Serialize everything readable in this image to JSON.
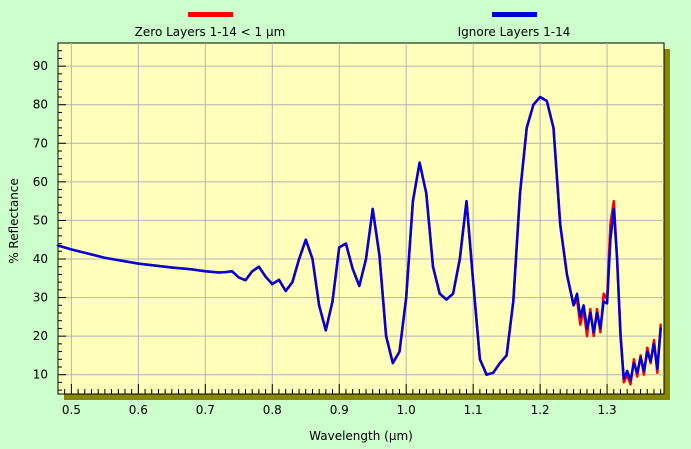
{
  "colors": {
    "page_background": "#ccffcc",
    "plot_background": "#ffffbb",
    "grid": "#b4b4b4",
    "axis": "#000000",
    "shadow": "#888800",
    "tick": "#000000"
  },
  "chart_data": {
    "type": "line",
    "xlabel": "Wavelength (µm)",
    "ylabel": "% Reflectance",
    "xlim": [
      0.48,
      1.385
    ],
    "ylim": [
      5,
      96
    ],
    "xticks": [
      0.5,
      0.6,
      0.7,
      0.8,
      0.9,
      1.0,
      1.1,
      1.2,
      1.3
    ],
    "xtick_labels": [
      "0.5",
      "0.6",
      "0.7",
      "0.8",
      "0.9",
      "1.0",
      "1.1",
      "1.2",
      "1.3"
    ],
    "yticks": [
      10,
      20,
      30,
      40,
      50,
      60,
      70,
      80,
      90
    ],
    "ytick_labels": [
      "10",
      "20",
      "30",
      "40",
      "50",
      "60",
      "70",
      "80",
      "90"
    ],
    "grid": true,
    "legend_position": "top",
    "series": [
      {
        "name": "Zero Layers 1-14 < 1 µm",
        "color": "#ff0000",
        "x": [
          0.48,
          0.5,
          0.55,
          0.6,
          0.65,
          0.68,
          0.7,
          0.72,
          0.73,
          0.74,
          0.75,
          0.76,
          0.77,
          0.78,
          0.79,
          0.8,
          0.81,
          0.82,
          0.83,
          0.84,
          0.85,
          0.86,
          0.87,
          0.88,
          0.89,
          0.9,
          0.91,
          0.92,
          0.93,
          0.94,
          0.95,
          0.96,
          0.97,
          0.98,
          0.99,
          1.0,
          1.01,
          1.02,
          1.03,
          1.04,
          1.05,
          1.06,
          1.07,
          1.08,
          1.09,
          1.1,
          1.11,
          1.12,
          1.13,
          1.14,
          1.15,
          1.16,
          1.17,
          1.18,
          1.19,
          1.2,
          1.21,
          1.22,
          1.23,
          1.24,
          1.25,
          1.255,
          1.26,
          1.265,
          1.27,
          1.275,
          1.28,
          1.285,
          1.29,
          1.295,
          1.3,
          1.305,
          1.31,
          1.315,
          1.32,
          1.325,
          1.33,
          1.335,
          1.34,
          1.345,
          1.35,
          1.355,
          1.36,
          1.365,
          1.37,
          1.375,
          1.38
        ],
        "y": [
          43.5,
          42.5,
          40.3,
          38.8,
          37.8,
          37.3,
          36.8,
          36.5,
          36.6,
          36.8,
          35.2,
          34.5,
          36.8,
          38.0,
          35.4,
          33.5,
          34.6,
          31.7,
          34.0,
          40.0,
          45.0,
          40.0,
          28.0,
          21.5,
          29.0,
          43.0,
          44.0,
          37.5,
          33.0,
          40.0,
          53.0,
          41.0,
          20.0,
          13.0,
          16.0,
          30.0,
          55.0,
          65.0,
          57.0,
          38.0,
          31.0,
          29.5,
          31.0,
          40.0,
          55.0,
          34.0,
          14.0,
          10.0,
          10.5,
          13.0,
          15.0,
          29.0,
          57.0,
          74.0,
          80.0,
          82.0,
          81.0,
          74.0,
          49.0,
          36.0,
          28.0,
          29.5,
          23.0,
          27.0,
          20.0,
          27.0,
          20.0,
          27.0,
          21.0,
          31.0,
          29.5,
          49.0,
          55.0,
          40.0,
          21.0,
          8.0,
          10.0,
          7.5,
          14.0,
          9.5,
          15.0,
          10.0,
          17.0,
          13.0,
          19.0,
          10.5,
          23.0
        ]
      },
      {
        "name": "Ignore Layers 1-14",
        "color": "#0000dd",
        "x": [
          0.48,
          0.5,
          0.55,
          0.6,
          0.65,
          0.68,
          0.7,
          0.72,
          0.73,
          0.74,
          0.75,
          0.76,
          0.77,
          0.78,
          0.79,
          0.8,
          0.81,
          0.82,
          0.83,
          0.84,
          0.85,
          0.86,
          0.87,
          0.88,
          0.89,
          0.9,
          0.91,
          0.92,
          0.93,
          0.94,
          0.95,
          0.96,
          0.97,
          0.98,
          0.99,
          1.0,
          1.01,
          1.02,
          1.03,
          1.04,
          1.05,
          1.06,
          1.07,
          1.08,
          1.09,
          1.1,
          1.11,
          1.12,
          1.13,
          1.14,
          1.15,
          1.16,
          1.17,
          1.18,
          1.19,
          1.2,
          1.21,
          1.22,
          1.23,
          1.24,
          1.25,
          1.255,
          1.26,
          1.265,
          1.27,
          1.275,
          1.28,
          1.285,
          1.29,
          1.295,
          1.3,
          1.305,
          1.31,
          1.315,
          1.32,
          1.325,
          1.33,
          1.335,
          1.34,
          1.345,
          1.35,
          1.355,
          1.36,
          1.365,
          1.37,
          1.375,
          1.38
        ],
        "y": [
          43.5,
          42.5,
          40.3,
          38.8,
          37.8,
          37.3,
          36.8,
          36.5,
          36.6,
          36.8,
          35.2,
          34.5,
          36.8,
          38.0,
          35.4,
          33.5,
          34.6,
          31.7,
          34.0,
          40.0,
          45.0,
          40.0,
          28.0,
          21.5,
          29.0,
          43.0,
          44.0,
          37.5,
          33.0,
          40.0,
          53.0,
          41.0,
          20.0,
          13.0,
          16.0,
          30.0,
          55.0,
          65.0,
          57.0,
          38.0,
          31.0,
          29.5,
          31.0,
          40.0,
          55.0,
          34.0,
          14.0,
          10.0,
          10.5,
          13.0,
          15.0,
          29.0,
          57.0,
          74.0,
          80.0,
          82.0,
          81.0,
          74.0,
          49.0,
          36.0,
          28.0,
          31.0,
          25.0,
          28.0,
          22.0,
          26.0,
          21.0,
          26.0,
          22.0,
          29.0,
          28.5,
          45.0,
          53.0,
          40.0,
          20.0,
          9.0,
          11.0,
          8.5,
          13.0,
          10.5,
          14.5,
          11.0,
          16.0,
          13.5,
          18.0,
          11.5,
          22.0
        ]
      }
    ]
  }
}
